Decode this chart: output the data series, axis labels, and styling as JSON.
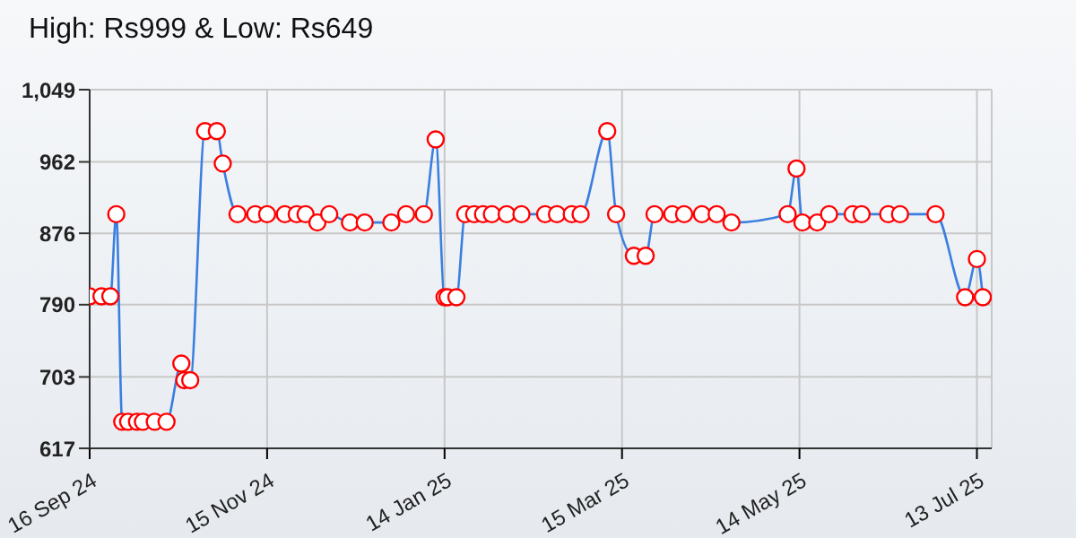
{
  "chart_data": {
    "type": "line",
    "title": "High: Rs999 & Low: Rs649",
    "x": [
      "2024-09-16",
      "2024-09-20",
      "2024-09-23",
      "2024-09-25",
      "2024-09-27",
      "2024-09-29",
      "2024-10-02",
      "2024-10-04",
      "2024-10-08",
      "2024-10-12",
      "2024-10-17",
      "2024-10-18",
      "2024-10-20",
      "2024-10-25",
      "2024-10-29",
      "2024-10-31",
      "2024-11-05",
      "2024-11-11",
      "2024-11-15",
      "2024-11-21",
      "2024-11-25",
      "2024-11-28",
      "2024-12-02",
      "2024-12-06",
      "2024-12-13",
      "2024-12-18",
      "2024-12-27",
      "2025-01-01",
      "2025-01-07",
      "2025-01-11",
      "2025-01-14",
      "2025-01-15",
      "2025-01-18",
      "2025-01-21",
      "2025-01-24",
      "2025-01-27",
      "2025-01-30",
      "2025-02-04",
      "2025-02-09",
      "2025-02-17",
      "2025-02-21",
      "2025-02-26",
      "2025-03-01",
      "2025-03-10",
      "2025-03-13",
      "2025-03-19",
      "2025-03-23",
      "2025-03-26",
      "2025-04-01",
      "2025-04-05",
      "2025-04-11",
      "2025-04-16",
      "2025-04-21",
      "2025-05-10",
      "2025-05-13",
      "2025-05-15",
      "2025-05-20",
      "2025-05-24",
      "2025-06-01",
      "2025-06-04",
      "2025-06-13",
      "2025-06-17",
      "2025-06-29",
      "2025-07-09",
      "2025-07-13",
      "2025-07-15"
    ],
    "series": [
      {
        "color": "#3a7fe0",
        "values": [
          800,
          800,
          800,
          899,
          649,
          649,
          649,
          649,
          649,
          649,
          719,
          699,
          699,
          999,
          999,
          960,
          899,
          899,
          899,
          899,
          899,
          899,
          889,
          899,
          889,
          889,
          889,
          899,
          899,
          989,
          799,
          799,
          799,
          899,
          899,
          899,
          899,
          899,
          899,
          899,
          899,
          899,
          899,
          999,
          899,
          849,
          849,
          899,
          899,
          899,
          899,
          899,
          889,
          899,
          954,
          889,
          889,
          899,
          899,
          899,
          899,
          899,
          899,
          799,
          845,
          799
        ]
      }
    ],
    "marker": "circle",
    "line_style": "solid",
    "grid": true,
    "legend": false,
    "xlim": [
      "2024-09-16",
      "2025-07-18"
    ],
    "xticks": [
      {
        "value": "2024-09-16",
        "label": "16 Sep 24"
      },
      {
        "value": "2024-11-15",
        "label": "15 Nov 24"
      },
      {
        "value": "2025-01-14",
        "label": "14 Jan 25"
      },
      {
        "value": "2025-03-15",
        "label": "15 Mar 25"
      },
      {
        "value": "2025-05-14",
        "label": "14 May 25"
      },
      {
        "value": "2025-07-13",
        "label": "13 Jul 25"
      }
    ],
    "ylim": [
      617,
      1049
    ],
    "yticks": [
      617,
      703,
      790,
      876,
      962,
      {
        "value": 1049,
        "label": "1,049"
      }
    ]
  }
}
